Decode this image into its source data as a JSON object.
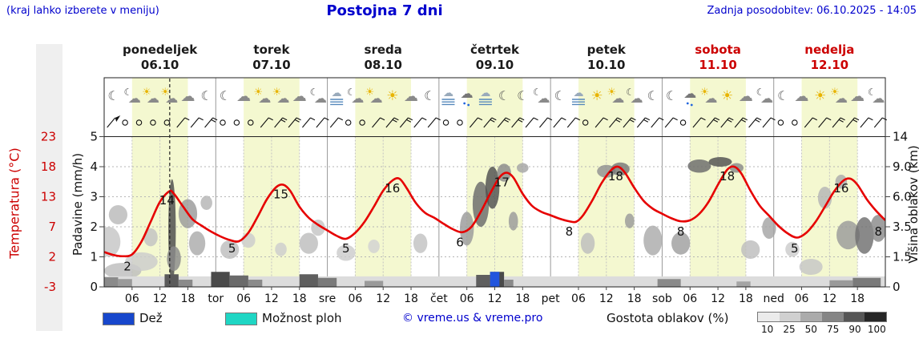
{
  "header": {
    "hint": "(kraj lahko izberete v meniju)",
    "title": "Postojna 7 dni",
    "updated": "Zadnja posodobitev: 06.10.2025 - 14:05"
  },
  "axes": {
    "temp_label": "Temperatura (°C)",
    "precip_label": "Padavine (mm/h)",
    "cloud_label": "Višina oblakov (km)"
  },
  "days": [
    {
      "name": "ponedeljek",
      "date": "06.10",
      "weekend": false
    },
    {
      "name": "torek",
      "date": "07.10",
      "weekend": false
    },
    {
      "name": "sreda",
      "date": "08.10",
      "weekend": false
    },
    {
      "name": "četrtek",
      "date": "09.10",
      "weekend": false
    },
    {
      "name": "petek",
      "date": "10.10",
      "weekend": false
    },
    {
      "name": "sobota",
      "date": "11.10",
      "weekend": true
    },
    {
      "name": "nedelja",
      "date": "12.10",
      "weekend": true
    }
  ],
  "legend": {
    "rain_label": "Dež",
    "rain_color": "#1747cc",
    "showers_label": "Možnost ploh",
    "showers_color": "#1fd6c4",
    "copyright": "© vreme.us & vreme.pro",
    "cloud_density_label": "Gostota oblakov (%)",
    "density_ticks": [
      "10",
      "25",
      "50",
      "75",
      "90",
      "100"
    ],
    "density_colors": [
      "#ebebeb",
      "#d0d0d0",
      "#ababab",
      "#858585",
      "#565656",
      "#262626"
    ]
  },
  "chart_data": {
    "type": "line",
    "title": "Postojna 7 dni",
    "x_range_hours": [
      0,
      168
    ],
    "hours_per_day": 24,
    "day_band_hours": [
      6,
      18
    ],
    "now_hour": 14.1,
    "grid": true,
    "temp_axis": {
      "ticks": [
        "23",
        "18",
        "13",
        "7",
        "2",
        "-3"
      ],
      "color": "#cc0000",
      "range": [
        -3,
        23
      ]
    },
    "precip_axis": {
      "ticks": [
        "5",
        "4",
        "3",
        "2",
        "1",
        "0"
      ],
      "range": [
        0,
        5
      ]
    },
    "cloud_axis": {
      "ticks": [
        "14",
        "9.0",
        "6.0",
        "3.5",
        "1.5",
        "0"
      ],
      "range": [
        0,
        14
      ]
    },
    "x_ticks": [
      [
        6,
        "06"
      ],
      [
        12,
        "12"
      ],
      [
        18,
        "18"
      ],
      [
        24,
        "tor"
      ],
      [
        30,
        "06"
      ],
      [
        36,
        "12"
      ],
      [
        42,
        "18"
      ],
      [
        48,
        "sre"
      ],
      [
        54,
        "06"
      ],
      [
        60,
        "12"
      ],
      [
        66,
        "18"
      ],
      [
        72,
        "čet"
      ],
      [
        78,
        "06"
      ],
      [
        84,
        "12"
      ],
      [
        90,
        "18"
      ],
      [
        96,
        "pet"
      ],
      [
        102,
        "06"
      ],
      [
        108,
        "12"
      ],
      [
        114,
        "18"
      ],
      [
        120,
        "sob"
      ],
      [
        126,
        "06"
      ],
      [
        132,
        "12"
      ],
      [
        138,
        "18"
      ],
      [
        144,
        "ned"
      ],
      [
        150,
        "06"
      ],
      [
        156,
        "12"
      ],
      [
        162,
        "18"
      ]
    ],
    "temperature": {
      "color": "#e60000",
      "points": [
        [
          0,
          2.8
        ],
        [
          2,
          2.3
        ],
        [
          4,
          2.1
        ],
        [
          6,
          2.4
        ],
        [
          8,
          4.5
        ],
        [
          10,
          8
        ],
        [
          12,
          12
        ],
        [
          14,
          13.9
        ],
        [
          15,
          13.5
        ],
        [
          17,
          11
        ],
        [
          19,
          8.5
        ],
        [
          21,
          7.2
        ],
        [
          23,
          6.2
        ],
        [
          25,
          5.4
        ],
        [
          27,
          4.8
        ],
        [
          29,
          4.6
        ],
        [
          31,
          6
        ],
        [
          33,
          9
        ],
        [
          35,
          12.5
        ],
        [
          37,
          14.6
        ],
        [
          38.5,
          15
        ],
        [
          40,
          14
        ],
        [
          42,
          11
        ],
        [
          44,
          8.8
        ],
        [
          46,
          7.4
        ],
        [
          48,
          6.4
        ],
        [
          50,
          5.5
        ],
        [
          52,
          5
        ],
        [
          54,
          6
        ],
        [
          56,
          8
        ],
        [
          58,
          11
        ],
        [
          60,
          14
        ],
        [
          62,
          15.7
        ],
        [
          63.5,
          16
        ],
        [
          65,
          14.5
        ],
        [
          67,
          11.8
        ],
        [
          69,
          9.8
        ],
        [
          71,
          8.8
        ],
        [
          73,
          7.6
        ],
        [
          75,
          6.6
        ],
        [
          77,
          6.1
        ],
        [
          79,
          7
        ],
        [
          81,
          10
        ],
        [
          83,
          13.5
        ],
        [
          85,
          16.2
        ],
        [
          86.5,
          17
        ],
        [
          88,
          16.2
        ],
        [
          90,
          13.5
        ],
        [
          92,
          11.2
        ],
        [
          94,
          10
        ],
        [
          96,
          9.3
        ],
        [
          98,
          8.6
        ],
        [
          100,
          8.1
        ],
        [
          101.5,
          8
        ],
        [
          103,
          9.3
        ],
        [
          105,
          12.3
        ],
        [
          107,
          15.3
        ],
        [
          109,
          17.4
        ],
        [
          110.5,
          18
        ],
        [
          112,
          17
        ],
        [
          114,
          14.5
        ],
        [
          116,
          12.2
        ],
        [
          118,
          10.6
        ],
        [
          120,
          9.6
        ],
        [
          122,
          8.7
        ],
        [
          124,
          8.1
        ],
        [
          126,
          8.3
        ],
        [
          128,
          9.6
        ],
        [
          130,
          12
        ],
        [
          132,
          15
        ],
        [
          134,
          17.5
        ],
        [
          135.5,
          18
        ],
        [
          137,
          16.9
        ],
        [
          139,
          14
        ],
        [
          141,
          11.2
        ],
        [
          143,
          9.2
        ],
        [
          145,
          7.2
        ],
        [
          147,
          5.9
        ],
        [
          149,
          5.2
        ],
        [
          151,
          6
        ],
        [
          153,
          8
        ],
        [
          155,
          11
        ],
        [
          157,
          13.9
        ],
        [
          159,
          15.7
        ],
        [
          160.5,
          16
        ],
        [
          162,
          15
        ],
        [
          164,
          12.5
        ],
        [
          166,
          10.2
        ],
        [
          168,
          8.3
        ]
      ]
    },
    "temp_labels": [
      [
        5,
        2,
        "2"
      ],
      [
        13.5,
        14,
        "14"
      ],
      [
        27.5,
        5,
        "5"
      ],
      [
        38,
        15,
        "15"
      ],
      [
        52,
        5,
        "5"
      ],
      [
        62,
        16,
        "16"
      ],
      [
        76.5,
        6,
        "6"
      ],
      [
        85.5,
        17,
        "17"
      ],
      [
        100,
        8,
        "8"
      ],
      [
        110,
        18,
        "18"
      ],
      [
        124,
        8,
        "8"
      ],
      [
        134,
        18,
        "18"
      ],
      [
        148.5,
        5,
        "5"
      ],
      [
        158.5,
        16,
        "16"
      ],
      [
        166.5,
        8,
        "8"
      ]
    ],
    "clouds": [
      [
        1,
        2.5,
        5,
        2,
        "#c6c6c6"
      ],
      [
        3,
        4.5,
        4,
        1.6,
        "#b9b9b9"
      ],
      [
        4,
        0.8,
        8,
        0.8,
        "#bdbdbd"
      ],
      [
        8,
        1.3,
        7,
        1,
        "#cccccc"
      ],
      [
        10,
        2.8,
        3,
        1.2,
        "#c2c2c2"
      ],
      [
        14.6,
        4,
        1.6,
        7.5,
        "#4a4a4a"
      ],
      [
        15,
        1.5,
        3,
        1.4,
        "#8a8a8a"
      ],
      [
        18,
        4.6,
        4,
        2.4,
        "#9a9a9a"
      ],
      [
        20,
        2.4,
        3.5,
        1.6,
        "#ababab"
      ],
      [
        22,
        5.5,
        2.5,
        1.2,
        "#b5b5b5"
      ],
      [
        27,
        2,
        4,
        1.2,
        "#bdbdbd"
      ],
      [
        31,
        2.6,
        3,
        1,
        "#cccccc"
      ],
      [
        38,
        2,
        2.5,
        0.9,
        "#cdcdcd"
      ],
      [
        44,
        2.4,
        4,
        1.4,
        "#bdbdbd"
      ],
      [
        46,
        3.5,
        3,
        1.2,
        "#c5c5c5"
      ],
      [
        52,
        1.8,
        4,
        1,
        "#cccccc"
      ],
      [
        58,
        2.2,
        2.5,
        0.9,
        "#d2d2d2"
      ],
      [
        68,
        2.4,
        3,
        1.3,
        "#c2c2c2"
      ],
      [
        78,
        3.5,
        3,
        2.5,
        "#9a9a9a"
      ],
      [
        81,
        5.5,
        3.5,
        4,
        "#6a6a6a"
      ],
      [
        83.5,
        7,
        3,
        4,
        "#4f4f4f"
      ],
      [
        86,
        8.5,
        3,
        2,
        "#8a8a8a"
      ],
      [
        90,
        9,
        2.5,
        1.2,
        "#a5a5a5"
      ],
      [
        88,
        4,
        2,
        1.5,
        "#9a9a9a"
      ],
      [
        104,
        2.4,
        3,
        1.4,
        "#bdbdbd"
      ],
      [
        108,
        8.6,
        4,
        1.4,
        "#909090"
      ],
      [
        111,
        8.9,
        4,
        1.6,
        "#777777"
      ],
      [
        113,
        4,
        2,
        1.2,
        "#9a9a9a"
      ],
      [
        118,
        2.6,
        4,
        2,
        "#ababab"
      ],
      [
        124,
        2.4,
        4,
        1.5,
        "#9f9f9f"
      ],
      [
        128,
        9.3,
        5,
        1.8,
        "#6a6a6a"
      ],
      [
        132.5,
        9.8,
        5,
        1.6,
        "#4f4f4f"
      ],
      [
        136,
        9,
        3,
        1.2,
        "#8a8a8a"
      ],
      [
        139,
        2,
        4,
        1.2,
        "#bdbdbd"
      ],
      [
        143,
        3.5,
        3,
        1.6,
        "#a5a5a5"
      ],
      [
        148,
        2,
        3,
        1,
        "#cccccc"
      ],
      [
        152,
        1,
        5,
        0.8,
        "#c6c6c6"
      ],
      [
        155,
        6,
        3,
        2,
        "#b5b5b5"
      ],
      [
        158.5,
        7.5,
        2.5,
        1.4,
        "#ababab"
      ],
      [
        160,
        3,
        5,
        2,
        "#9a9a9a"
      ],
      [
        163.5,
        3,
        4,
        2.6,
        "#6f6f6f"
      ],
      [
        166.5,
        3.5,
        3.5,
        2,
        "#8a8a8a"
      ]
    ],
    "precip_background": {
      "v": 0.35,
      "color": "#dcdcdc"
    },
    "precip_bars": [
      [
        0,
        3,
        0.32,
        "#8a8a8a"
      ],
      [
        3,
        6,
        0.26,
        "#9a9a9a"
      ],
      [
        13,
        16,
        0.42,
        "#5a5a5a"
      ],
      [
        16,
        19,
        0.24,
        "#8a8a8a"
      ],
      [
        23,
        27,
        0.5,
        "#4a4a4a"
      ],
      [
        27,
        31,
        0.38,
        "#6a6a6a"
      ],
      [
        31,
        34,
        0.24,
        "#8a8a8a"
      ],
      [
        42,
        46,
        0.42,
        "#5f5f5f"
      ],
      [
        46,
        50,
        0.3,
        "#7a7a7a"
      ],
      [
        56,
        60,
        0.2,
        "#9a9a9a"
      ],
      [
        80,
        83,
        0.4,
        "#5f5f5f"
      ],
      [
        83,
        86,
        0.5,
        "#4a4a4a"
      ],
      [
        86,
        88,
        0.24,
        "#8a8a8a"
      ],
      [
        119,
        124,
        0.26,
        "#8a8a8a"
      ],
      [
        136,
        139,
        0.18,
        "#a5a5a5"
      ],
      [
        156,
        161,
        0.22,
        "#9a9a9a"
      ],
      [
        161,
        167,
        0.3,
        "#7a7a7a"
      ]
    ],
    "rain_bars": [
      [
        83,
        85,
        0.5
      ]
    ],
    "rain_color": "#2255dd",
    "wind": [
      "flag",
      "calm",
      "calm",
      "calm",
      "calm",
      "barb1",
      "barb1",
      "barb2",
      "calm",
      "calm",
      "calm",
      "barb1",
      "barb2",
      "barb2",
      "barb1",
      "barb1",
      "barb1",
      "calm",
      "calm",
      "barb1",
      "barb2",
      "barb2",
      "barb1",
      "barb1",
      "calm",
      "calm",
      "barb1",
      "barb2",
      "barb2",
      "barb2",
      "barb1",
      "barb1",
      "barb1",
      "barb1",
      "calm",
      "barb1",
      "barb2",
      "barb2",
      "barb2",
      "barb1",
      "barb1",
      "calm",
      "barb1",
      "barb2",
      "barb2",
      "barb2",
      "barb2",
      "barb1",
      "calm",
      "calm",
      "barb1",
      "barb1",
      "barb2",
      "barb2",
      "barb1",
      "barb1"
    ],
    "icons": [
      [
        2,
        "moon"
      ],
      [
        6,
        "cloud-moon"
      ],
      [
        10,
        "sun-cloud"
      ],
      [
        14,
        "sun-cloud"
      ],
      [
        18,
        "cloud"
      ],
      [
        22,
        "moon"
      ],
      [
        26,
        "moon"
      ],
      [
        30,
        "cloud"
      ],
      [
        34,
        "sun-cloud"
      ],
      [
        38,
        "sun-cloud"
      ],
      [
        42,
        "cloud"
      ],
      [
        46,
        "cloud-moon"
      ],
      [
        50,
        "fog"
      ],
      [
        54,
        "cloud-moon"
      ],
      [
        58,
        "sun-cloud"
      ],
      [
        62,
        "sun"
      ],
      [
        66,
        "cloud"
      ],
      [
        70,
        "moon"
      ],
      [
        74,
        "fog"
      ],
      [
        78,
        "rain"
      ],
      [
        82,
        "fog"
      ],
      [
        86,
        "moon"
      ],
      [
        90,
        "moon"
      ],
      [
        94,
        "cloud-moon"
      ],
      [
        98,
        "moon"
      ],
      [
        102,
        "fog"
      ],
      [
        106,
        "sun"
      ],
      [
        110,
        "sun-cloud"
      ],
      [
        114,
        "cloud-moon"
      ],
      [
        118,
        "moon"
      ],
      [
        122,
        "moon"
      ],
      [
        126,
        "rain"
      ],
      [
        130,
        "sun-cloud"
      ],
      [
        134,
        "sun"
      ],
      [
        138,
        "cloud"
      ],
      [
        142,
        "cloud-moon"
      ],
      [
        146,
        "moon"
      ],
      [
        150,
        "cloud"
      ],
      [
        154,
        "sun"
      ],
      [
        158,
        "sun-cloud"
      ],
      [
        162,
        "cloud"
      ],
      [
        166,
        "cloud-moon"
      ]
    ]
  }
}
